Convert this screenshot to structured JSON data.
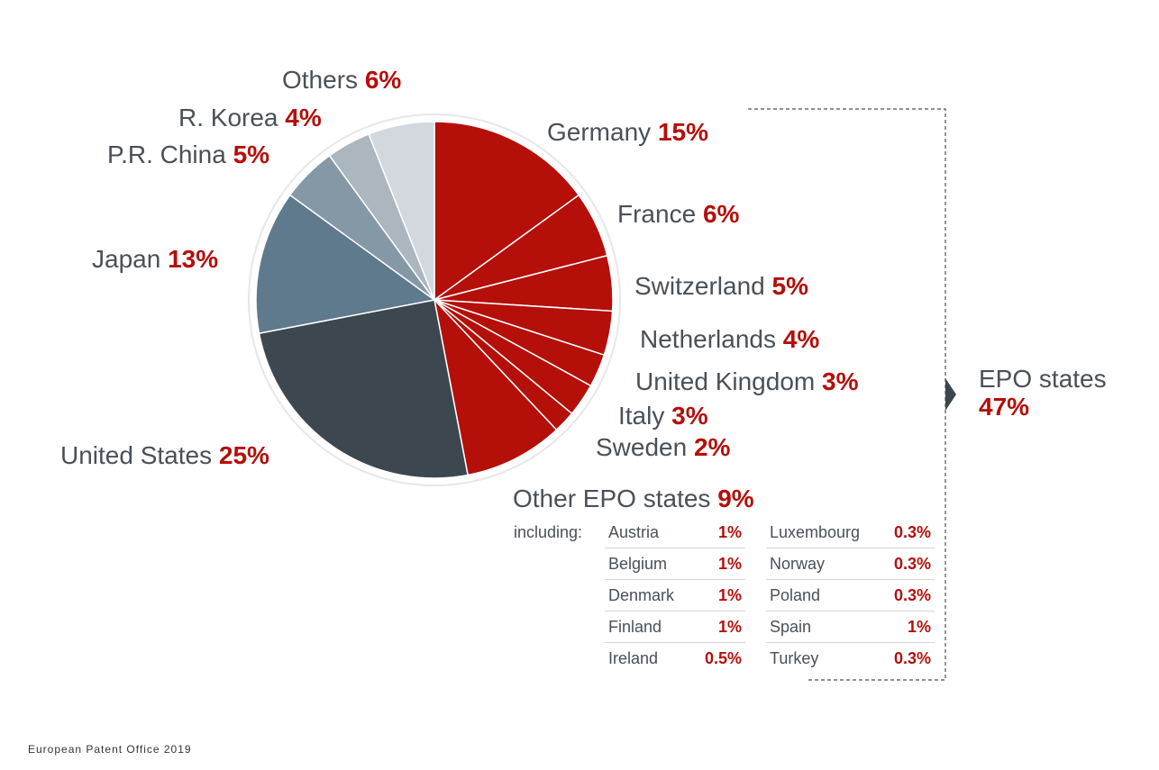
{
  "chart_data": {
    "type": "pie",
    "start": "12 o'clock, clockwise",
    "slices": [
      {
        "name": "Germany",
        "label": "15%",
        "value": 15,
        "color": "#b50f0a"
      },
      {
        "name": "France",
        "label": "6%",
        "value": 6,
        "color": "#b50f0a"
      },
      {
        "name": "Switzerland",
        "label": "5%",
        "value": 5,
        "color": "#b50f0a"
      },
      {
        "name": "Netherlands",
        "label": "4%",
        "value": 4,
        "color": "#b50f0a"
      },
      {
        "name": "United Kingdom",
        "label": "3%",
        "value": 3,
        "color": "#b50f0a"
      },
      {
        "name": "Italy",
        "label": "3%",
        "value": 3,
        "color": "#b50f0a"
      },
      {
        "name": "Sweden",
        "label": "2%",
        "value": 2,
        "color": "#b50f0a"
      },
      {
        "name": "Other EPO states",
        "label": "9%",
        "value": 9,
        "color": "#b50f0a"
      },
      {
        "name": "United States",
        "label": "25%",
        "value": 25,
        "color": "#3d474f"
      },
      {
        "name": "Japan",
        "label": "13%",
        "value": 13,
        "color": "#5f798d"
      },
      {
        "name": "P.R. China",
        "label": "5%",
        "value": 5,
        "color": "#8598a6"
      },
      {
        "name": "R. Korea",
        "label": "4%",
        "value": 4,
        "color": "#abb6bf"
      },
      {
        "name": "Others",
        "label": "6%",
        "value": 6,
        "color": "#d2d8de"
      }
    ],
    "group": {
      "name": "EPO states",
      "label": "47%"
    }
  },
  "including": {
    "label": "including:",
    "left": [
      {
        "country": "Austria",
        "pct": "1%"
      },
      {
        "country": "Belgium",
        "pct": "1%"
      },
      {
        "country": "Denmark",
        "pct": "1%"
      },
      {
        "country": "Finland",
        "pct": "1%"
      },
      {
        "country": "Ireland",
        "pct": "0.5%"
      }
    ],
    "right": [
      {
        "country": "Luxembourg",
        "pct": "0.3%"
      },
      {
        "country": "Norway",
        "pct": "0.3%"
      },
      {
        "country": "Poland",
        "pct": "0.3%"
      },
      {
        "country": "Spain",
        "pct": "1%"
      },
      {
        "country": "Turkey",
        "pct": "0.3%"
      }
    ]
  },
  "footer": "European Patent Office 2019"
}
